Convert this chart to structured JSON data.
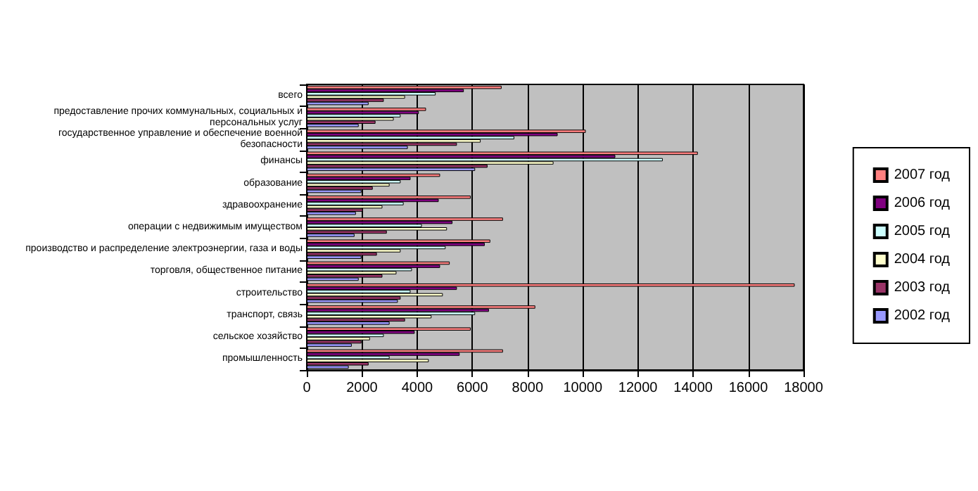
{
  "chart_data": {
    "type": "bar",
    "orientation": "horizontal",
    "categories": [
      "всего",
      "предоставление прочих коммунальных, социальных и персональных услуг",
      "государственное управление и обеспечение военной безопасности",
      "финансы",
      "образование",
      "здравоохранение",
      "операции с недвижимым имуществом",
      "производство и распределение электроэнергии, газа и воды",
      "торговля, общественное питание",
      "строительство",
      "транспорт, связь",
      "сельское хозяйство",
      "промышленность"
    ],
    "series": [
      {
        "name": "2007 год",
        "color": "#ff8080",
        "values": [
          7060,
          4320,
          10110,
          14170,
          4830,
          5940,
          7110,
          6650,
          5180,
          17680,
          8280,
          5940,
          7110
        ]
      },
      {
        "name": "2006 год",
        "color": "#800080",
        "values": [
          5690,
          4060,
          9090,
          11180,
          3760,
          4780,
          5280,
          6450,
          4830,
          5440,
          6600,
          3910,
          5540
        ]
      },
      {
        "name": "2005 год",
        "color": "#ccffff",
        "values": [
          4670,
          3400,
          7520,
          12900,
          3400,
          3510,
          4170,
          5030,
          3810,
          3760,
          6100,
          2790,
          3000
        ]
      },
      {
        "name": "2004 год",
        "color": "#ffffcc",
        "values": [
          3560,
          3150,
          6300,
          8940,
          3000,
          2740,
          5080,
          3400,
          3250,
          4930,
          4520,
          2290,
          4420
        ]
      },
      {
        "name": "2003 год",
        "color": "#993366",
        "values": [
          2790,
          2490,
          5440,
          6550,
          2390,
          2030,
          2900,
          2540,
          2740,
          3400,
          3560,
          1980,
          2240
        ]
      },
      {
        "name": "2002 год",
        "color": "#9999ff",
        "values": [
          2240,
          1880,
          3660,
          6100,
          1980,
          1780,
          1730,
          1980,
          1880,
          3300,
          3000,
          1630,
          1520
        ]
      }
    ],
    "xlim": [
      0,
      18000
    ],
    "xticks": [
      0,
      2000,
      4000,
      6000,
      8000,
      10000,
      12000,
      14000,
      16000,
      18000
    ],
    "grid": "x",
    "legend": "right"
  }
}
